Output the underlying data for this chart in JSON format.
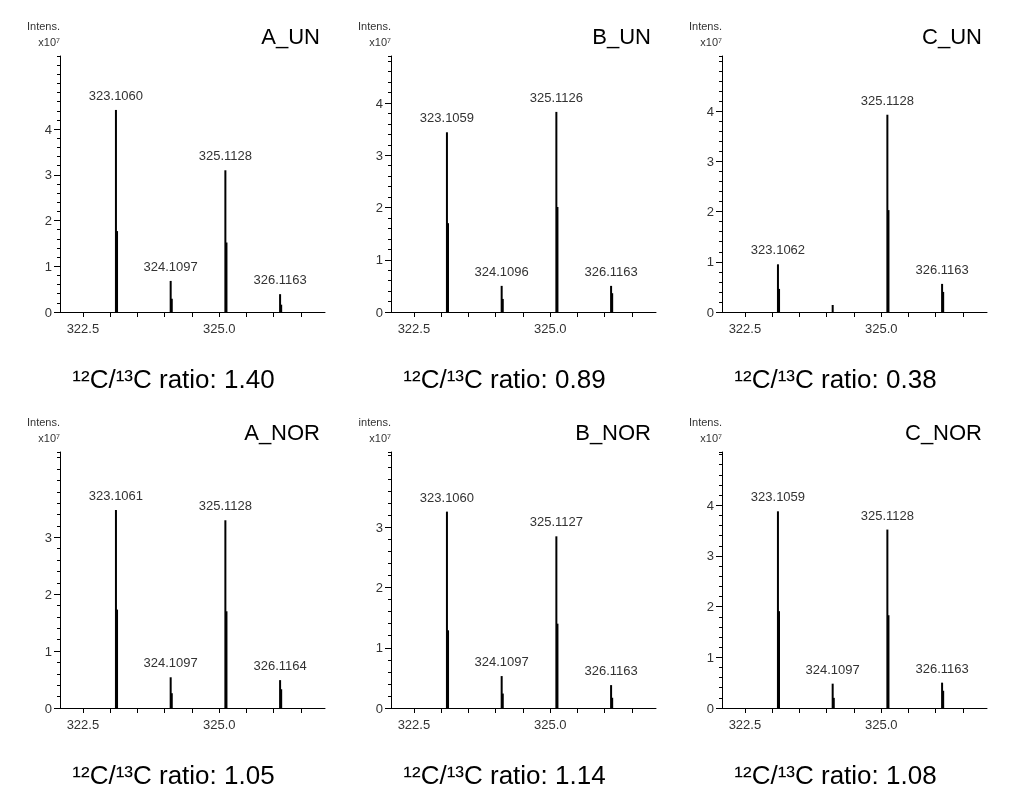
{
  "chart_data": [
    {
      "type": "bar",
      "title": "A_UN",
      "ylabel": "Intens. x10⁷",
      "color": "#000000",
      "xlim": [
        322.08,
        326.94
      ],
      "xticks": [
        {
          "value": 322.5,
          "label": "322.5"
        },
        {
          "value": 323,
          "label": null
        },
        {
          "value": 323.5,
          "label": null
        },
        {
          "value": 324,
          "label": null
        },
        {
          "value": 324.5,
          "label": null
        },
        {
          "value": 325,
          "label": "325.0"
        },
        {
          "value": 325.5,
          "label": null
        },
        {
          "value": 326,
          "label": null
        },
        {
          "value": 326.5,
          "label": null
        }
      ],
      "ylim": [
        0,
        5.6
      ],
      "yticks": [
        0,
        1,
        2,
        3,
        4
      ],
      "x": [
        323.106,
        323.126,
        324.1097,
        324.1297,
        325.1128,
        325.1328,
        326.1163,
        326.1363
      ],
      "values": [
        4.42,
        1.77,
        0.68,
        0.29,
        3.1,
        1.52,
        0.39,
        0.16
      ],
      "annotations": [
        "¹²C/¹³C ratio: 1.40",
        {
          "text": "323.1060",
          "x": 323.106,
          "y": 4.42
        },
        {
          "text": "324.1097",
          "x": 324.1097,
          "y": 0.68
        },
        {
          "text": "325.1128",
          "x": 325.1128,
          "y": 3.1
        },
        {
          "text": "326.1163",
          "x": 326.1163,
          "y": 0.39
        }
      ]
    },
    {
      "type": "bar",
      "title": "B_UN",
      "ylabel": "Intens. x10⁷",
      "color": "#000000",
      "xlim": [
        322.08,
        326.94
      ],
      "xticks": [
        {
          "value": 322.5,
          "label": "322.5"
        },
        {
          "value": 323,
          "label": null
        },
        {
          "value": 323.5,
          "label": null
        },
        {
          "value": 324,
          "label": null
        },
        {
          "value": 324.5,
          "label": null
        },
        {
          "value": 325,
          "label": "325.0"
        },
        {
          "value": 325.5,
          "label": null
        },
        {
          "value": 326,
          "label": null
        },
        {
          "value": 326.5,
          "label": null
        }
      ],
      "ylim": [
        0,
        4.9
      ],
      "yticks": [
        0,
        1,
        2,
        3,
        4
      ],
      "x": [
        323.1059,
        323.1259,
        324.1096,
        324.1296,
        325.1126,
        325.1326,
        326.1163,
        326.1363
      ],
      "values": [
        3.44,
        1.7,
        0.5,
        0.25,
        3.83,
        2.01,
        0.5,
        0.36
      ],
      "annotations": [
        "¹²C/¹³C ratio: 0.89",
        {
          "text": "323.1059",
          "x": 323.1059,
          "y": 3.44
        },
        {
          "text": "324.1096",
          "x": 324.1096,
          "y": 0.5
        },
        {
          "text": "325.1126",
          "x": 325.1126,
          "y": 3.83
        },
        {
          "text": "326.1163",
          "x": 326.1163,
          "y": 0.5
        }
      ]
    },
    {
      "type": "bar",
      "title": "C_UN",
      "ylabel": "Intens. x10⁷",
      "color": "#000000",
      "xlim": [
        322.08,
        326.94
      ],
      "xticks": [
        {
          "value": 322.5,
          "label": "322.5"
        },
        {
          "value": 323,
          "label": null
        },
        {
          "value": 323.5,
          "label": null
        },
        {
          "value": 324,
          "label": null
        },
        {
          "value": 324.5,
          "label": null
        },
        {
          "value": 325,
          "label": "325.0"
        },
        {
          "value": 325.5,
          "label": null
        },
        {
          "value": 326,
          "label": null
        },
        {
          "value": 326.5,
          "label": null
        }
      ],
      "ylim": [
        0,
        5.1
      ],
      "yticks": [
        0,
        1,
        2,
        3,
        4
      ],
      "x": [
        323.1062,
        323.1262,
        324.11,
        325.1128,
        325.1328,
        326.1163,
        326.1363
      ],
      "values": [
        0.95,
        0.46,
        0.14,
        3.93,
        2.03,
        0.56,
        0.4
      ],
      "annotations": [
        "¹²C/¹³C ratio: 0.38",
        {
          "text": "323.1062",
          "x": 323.1062,
          "y": 0.95
        },
        {
          "text": "325.1128",
          "x": 325.1128,
          "y": 3.93
        },
        {
          "text": "326.1163",
          "x": 326.1163,
          "y": 0.56
        }
      ]
    },
    {
      "type": "bar",
      "title": "A_NOR",
      "ylabel": "Intens. x10⁷",
      "color": "#000000",
      "xlim": [
        322.08,
        326.94
      ],
      "xticks": [
        {
          "value": 322.5,
          "label": "322.5"
        },
        {
          "value": 323,
          "label": null
        },
        {
          "value": 323.5,
          "label": null
        },
        {
          "value": 324,
          "label": null
        },
        {
          "value": 324.5,
          "label": null
        },
        {
          "value": 325,
          "label": "325.0"
        },
        {
          "value": 325.5,
          "label": null
        },
        {
          "value": 326,
          "label": null
        },
        {
          "value": 326.5,
          "label": null
        }
      ],
      "ylim": [
        0,
        4.5
      ],
      "yticks": [
        0,
        1,
        2,
        3
      ],
      "x": [
        323.1061,
        323.1261,
        324.1097,
        324.1297,
        325.1128,
        325.1328,
        326.1164,
        326.1364
      ],
      "values": [
        3.48,
        1.73,
        0.54,
        0.26,
        3.3,
        1.7,
        0.49,
        0.33
      ],
      "annotations": [
        "¹²C/¹³C ratio: 1.05",
        {
          "text": "323.1061",
          "x": 323.1061,
          "y": 3.48
        },
        {
          "text": "324.1097",
          "x": 324.1097,
          "y": 0.54
        },
        {
          "text": "325.1128",
          "x": 325.1128,
          "y": 3.3
        },
        {
          "text": "326.1164",
          "x": 326.1164,
          "y": 0.49
        }
      ]
    },
    {
      "type": "bar",
      "title": "B_NOR",
      "ylabel": "intens. x10⁷",
      "color": "#000000",
      "xlim": [
        322.08,
        326.94
      ],
      "xticks": [
        {
          "value": 322.5,
          "label": "322.5"
        },
        {
          "value": 323,
          "label": null
        },
        {
          "value": 323.5,
          "label": null
        },
        {
          "value": 324,
          "label": null
        },
        {
          "value": 324.5,
          "label": null
        },
        {
          "value": 325,
          "label": "325.0"
        },
        {
          "value": 325.5,
          "label": null
        },
        {
          "value": 326,
          "label": null
        },
        {
          "value": 326.5,
          "label": null
        }
      ],
      "ylim": [
        0,
        4.25
      ],
      "yticks": [
        0,
        1,
        2,
        3
      ],
      "x": [
        323.106,
        323.126,
        324.1097,
        324.1297,
        325.1127,
        325.1327,
        326.1163,
        326.1363
      ],
      "values": [
        3.26,
        1.29,
        0.53,
        0.24,
        2.85,
        1.4,
        0.38,
        0.17
      ],
      "annotations": [
        "¹²C/¹³C ratio: 1.14",
        {
          "text": "323.1060",
          "x": 323.106,
          "y": 3.26
        },
        {
          "text": "324.1097",
          "x": 324.1097,
          "y": 0.53
        },
        {
          "text": "325.1127",
          "x": 325.1127,
          "y": 2.85
        },
        {
          "text": "326.1163",
          "x": 326.1163,
          "y": 0.38
        }
      ]
    },
    {
      "type": "bar",
      "title": "C_NOR",
      "ylabel": "Intens. x10⁷",
      "color": "#000000",
      "xlim": [
        322.08,
        326.94
      ],
      "xticks": [
        {
          "value": 322.5,
          "label": "322.5"
        },
        {
          "value": 323,
          "label": null
        },
        {
          "value": 323.5,
          "label": null
        },
        {
          "value": 324,
          "label": null
        },
        {
          "value": 324.5,
          "label": null
        },
        {
          "value": 325,
          "label": "325.0"
        },
        {
          "value": 325.5,
          "label": null
        },
        {
          "value": 326,
          "label": null
        },
        {
          "value": 326.5,
          "label": null
        }
      ],
      "ylim": [
        0,
        5.05
      ],
      "yticks": [
        0,
        1,
        2,
        3,
        4
      ],
      "x": [
        323.1059,
        323.1259,
        324.1097,
        324.1297,
        325.1128,
        325.1328,
        326.1163,
        326.1363
      ],
      "values": [
        3.88,
        1.91,
        0.48,
        0.2,
        3.52,
        1.83,
        0.5,
        0.34
      ],
      "annotations": [
        "¹²C/¹³C ratio: 1.08",
        {
          "text": "323.1059",
          "x": 323.1059,
          "y": 3.88
        },
        {
          "text": "324.1097",
          "x": 324.1097,
          "y": 0.48
        },
        {
          "text": "325.1128",
          "x": 325.1128,
          "y": 3.52
        },
        {
          "text": "326.1163",
          "x": 326.1163,
          "y": 0.5
        }
      ]
    }
  ]
}
